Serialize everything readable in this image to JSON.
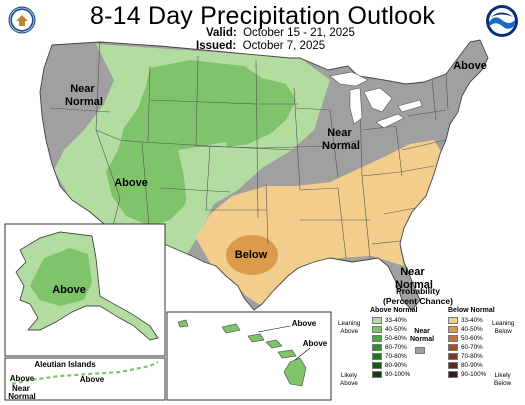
{
  "header": {
    "title": "8-14 Day Precipitation Outlook",
    "valid_label": "Valid:",
    "valid_value": "October 15 - 21, 2025",
    "issued_label": "Issued:",
    "issued_value": "October 7, 2025"
  },
  "logos": {
    "left": "doc-seal-icon",
    "right": "noaa-logo-icon"
  },
  "colors": {
    "near_normal": "#a0a0a0",
    "above_33_40": "#b3dca0",
    "above_40_50": "#7fc46a",
    "below_33_40": "#f2cd8c",
    "below_40_50": "#dc9b4a",
    "ocean": "#ffffff",
    "state_border": "#555555"
  },
  "map_labels": {
    "near_normal_nw": [
      "Near",
      "Normal"
    ],
    "above_sw": "Above",
    "above_ne": "Above",
    "near_normal_ne": [
      "Near",
      "Normal"
    ],
    "below_tx": "Below",
    "near_normal_fl": [
      "Near",
      "Normal"
    ],
    "above_ak": "Above",
    "aleutian_title": "Aleutian Islands",
    "aleutian_above_w": "Above",
    "aleutian_near_normal": [
      "Near",
      "Normal"
    ],
    "aleutian_above_e": "Above",
    "hawaii_above_1": "Above",
    "hawaii_above_2": "Above"
  },
  "legend": {
    "title": [
      "Probability",
      "(Percent Chance)"
    ],
    "above_header": "Above Normal",
    "below_header": "Below Normal",
    "near_normal_label": [
      "Near",
      "Normal"
    ],
    "leaning_above": [
      "Leaning",
      "Above"
    ],
    "likely_above": [
      "Likely",
      "Above"
    ],
    "leaning_below": [
      "Leaning",
      "Below"
    ],
    "likely_below": [
      "Likely",
      "Below"
    ],
    "above_bins": [
      {
        "label": "33-40%",
        "color": "#b3dca0"
      },
      {
        "label": "40-50%",
        "color": "#7fc46a"
      },
      {
        "label": "50-60%",
        "color": "#4eab3e"
      },
      {
        "label": "60-70%",
        "color": "#2f8f2a"
      },
      {
        "label": "70-80%",
        "color": "#1f7420"
      },
      {
        "label": "80-90%",
        "color": "#145a16"
      },
      {
        "label": "90-100%",
        "color": "#0b400d"
      }
    ],
    "below_bins": [
      {
        "label": "33-40%",
        "color": "#f2cd8c"
      },
      {
        "label": "40-50%",
        "color": "#dc9b4a"
      },
      {
        "label": "50-60%",
        "color": "#c0743a"
      },
      {
        "label": "60-70%",
        "color": "#9e4f2a"
      },
      {
        "label": "70-80%",
        "color": "#7d3a20"
      },
      {
        "label": "80-90%",
        "color": "#5e2a18"
      },
      {
        "label": "90-100%",
        "color": "#3e1b10"
      }
    ]
  }
}
